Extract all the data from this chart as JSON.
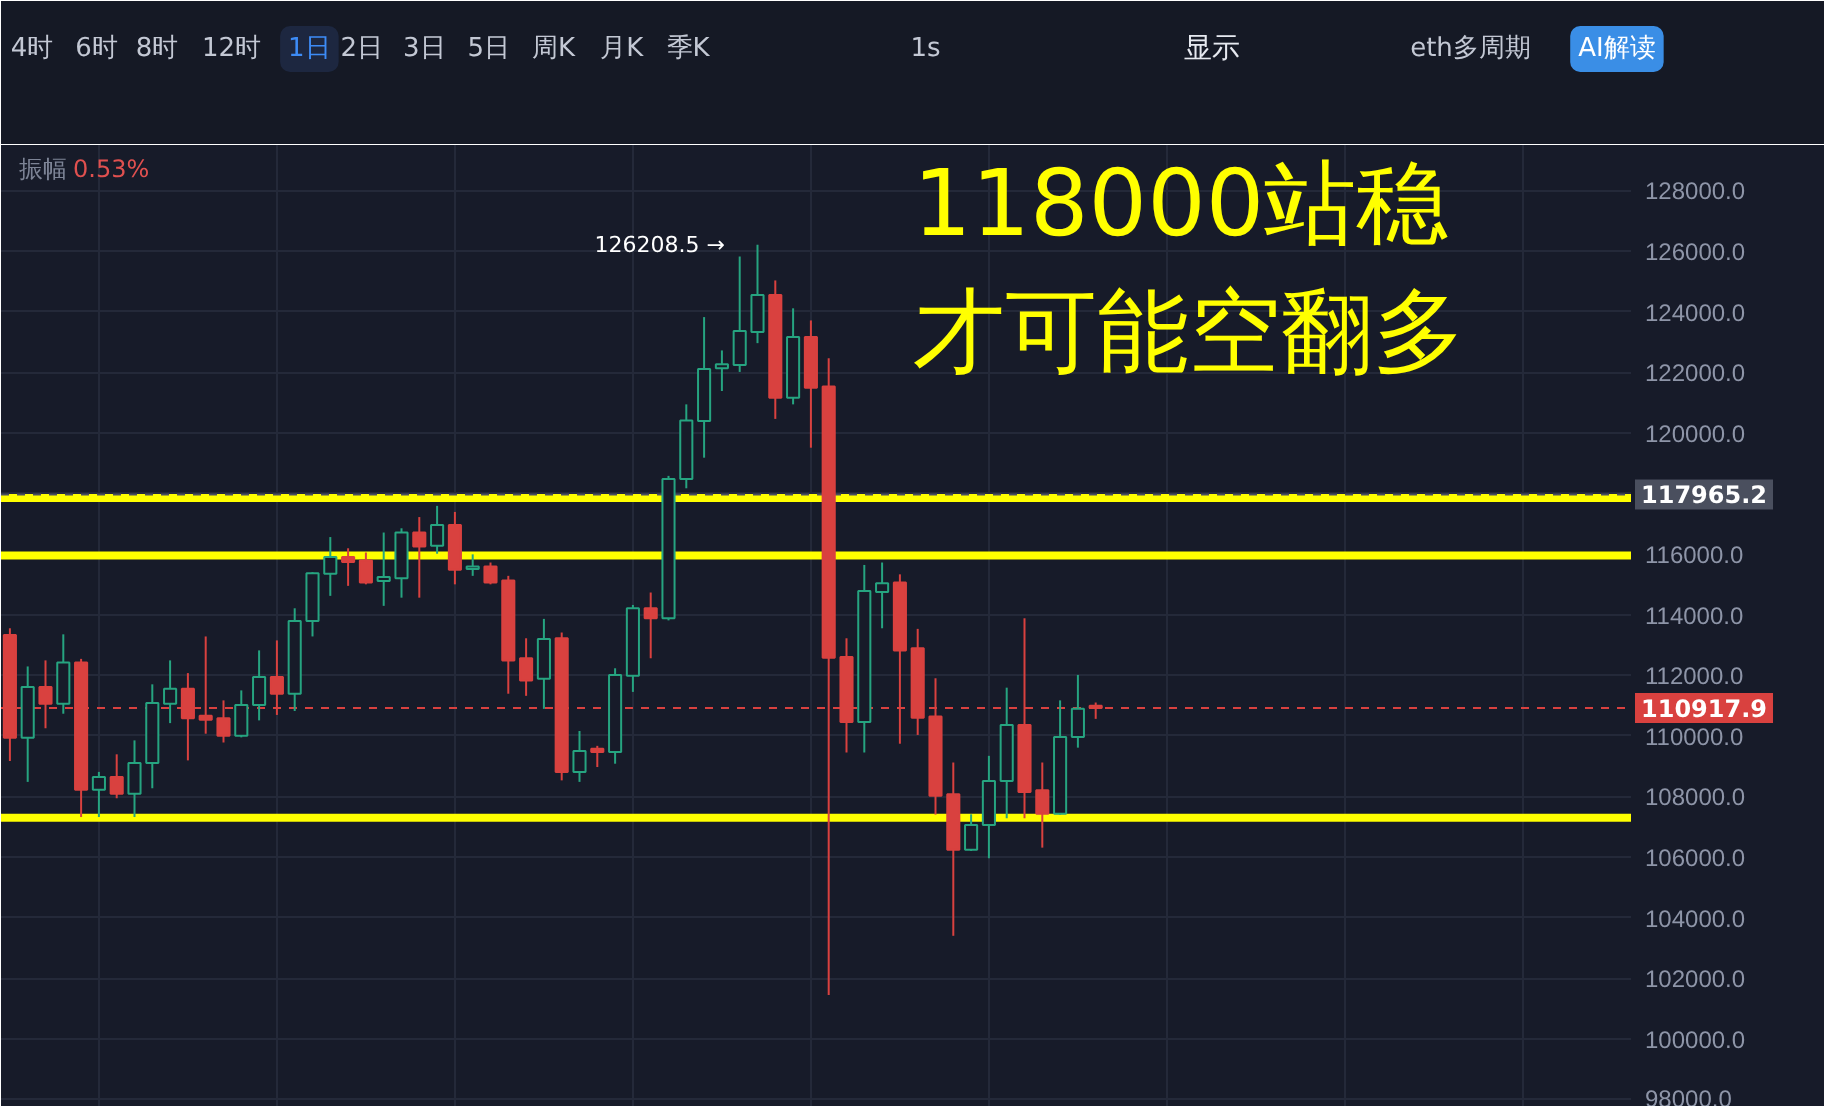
{
  "chart_data": {
    "type": "candlestick",
    "categories": [
      null,
      null,
      null,
      null,
      null,
      null,
      null,
      null,
      null,
      null,
      null,
      null,
      null,
      null,
      null,
      null,
      null,
      null,
      null,
      null,
      null,
      null,
      null,
      null,
      null,
      null,
      null,
      null,
      null,
      null,
      null,
      null,
      null,
      null,
      null,
      null,
      null,
      null,
      null,
      null,
      null,
      null,
      null,
      null,
      null,
      null,
      null,
      null,
      null,
      null,
      null,
      null,
      null,
      null,
      null,
      null,
      null,
      null,
      null,
      null,
      null,
      null,
      null,
      null,
      null,
      null,
      null,
      null,
      null,
      null,
      null,
      null,
      null,
      null,
      null,
      null,
      null,
      null,
      null,
      null,
      null,
      null,
      null,
      null,
      null,
      null,
      null,
      null,
      null,
      null,
      null,
      null,
      null,
      null,
      null,
      null,
      null,
      null,
      null,
      null
    ],
    "ohlc": [
      [
        113330,
        113550,
        109170,
        109940
      ],
      [
        109940,
        112290,
        108480,
        111610
      ],
      [
        111610,
        112490,
        110250,
        111060
      ],
      [
        111060,
        113350,
        110730,
        112420
      ],
      [
        112420,
        112540,
        107320,
        108220
      ],
      [
        108220,
        108810,
        107320,
        108640
      ],
      [
        108640,
        109390,
        107940,
        108090
      ],
      [
        108090,
        109850,
        107320,
        109100
      ],
      [
        109100,
        111700,
        108270,
        111080
      ],
      [
        111060,
        112490,
        110420,
        111550
      ],
      [
        111550,
        112070,
        109190,
        110580
      ],
      [
        110660,
        113280,
        110070,
        110530
      ],
      [
        110580,
        111170,
        109780,
        110000
      ],
      [
        110000,
        111500,
        109950,
        111020
      ],
      [
        111020,
        112820,
        110510,
        111940
      ],
      [
        111940,
        113150,
        110690,
        111390
      ],
      [
        111390,
        114210,
        110820,
        113790
      ],
      [
        113790,
        115400,
        113280,
        115370
      ],
      [
        115350,
        116560,
        114620,
        115900
      ],
      [
        115900,
        116190,
        114950,
        115740
      ],
      [
        115790,
        116050,
        115000,
        115060
      ],
      [
        115110,
        116710,
        114290,
        115240
      ],
      [
        115200,
        116850,
        114560,
        116710
      ],
      [
        116710,
        117220,
        114560,
        116250
      ],
      [
        116270,
        117590,
        116010,
        116960
      ],
      [
        116960,
        117390,
        115000,
        115480
      ],
      [
        115510,
        115990,
        115280,
        115590
      ],
      [
        115590,
        115720,
        115000,
        115060
      ],
      [
        115130,
        115280,
        111390,
        112490
      ],
      [
        112560,
        113220,
        111320,
        111830
      ],
      [
        111880,
        113860,
        110890,
        113200
      ],
      [
        113220,
        113410,
        108530,
        108810
      ],
      [
        108810,
        110160,
        108480,
        109500
      ],
      [
        109570,
        109670,
        108970,
        109470
      ],
      [
        109470,
        112230,
        109080,
        112010
      ],
      [
        111980,
        114320,
        111450,
        114210
      ],
      [
        114210,
        114730,
        112560,
        113880
      ],
      [
        113880,
        118580,
        113810,
        118480
      ],
      [
        118480,
        120940,
        118170,
        120410
      ],
      [
        120390,
        123820,
        119180,
        122110
      ],
      [
        122130,
        122720,
        121380,
        122260
      ],
      [
        122240,
        125820,
        122010,
        123360
      ],
      [
        123330,
        126208.5,
        122960,
        124550
      ],
      [
        124550,
        125030,
        120460,
        121160
      ],
      [
        121160,
        124110,
        120940,
        123160
      ],
      [
        123160,
        123710,
        119510,
        121490
      ],
      [
        121530,
        122460,
        101450,
        112580
      ],
      [
        112600,
        113220,
        109450,
        110460
      ],
      [
        110460,
        115640,
        109450,
        114780
      ],
      [
        114750,
        115720,
        113550,
        115040
      ],
      [
        115060,
        115330,
        109740,
        112820
      ],
      [
        112890,
        113530,
        110030,
        110600
      ],
      [
        110640,
        111900,
        107400,
        108020
      ],
      [
        108070,
        109120,
        103400,
        106240
      ],
      [
        106240,
        107410,
        106200,
        107060
      ],
      [
        107060,
        109340,
        105960,
        108510
      ],
      [
        108510,
        111590,
        107280,
        110360
      ],
      [
        110360,
        113880,
        107280,
        108150
      ],
      [
        108200,
        109120,
        106310,
        107430
      ],
      [
        107430,
        111170,
        107400,
        109960
      ],
      [
        109960,
        112010,
        109610,
        110890
      ],
      [
        110990,
        111100,
        110560,
        110917.9
      ],
      null,
      null,
      null,
      null,
      null,
      null,
      null,
      null,
      null,
      null,
      null,
      null,
      null,
      null,
      null,
      null,
      null,
      null,
      null,
      null,
      null,
      null,
      null,
      null,
      null,
      null,
      null,
      null,
      null,
      null,
      null,
      null,
      null,
      null,
      null,
      null,
      null,
      null
    ],
    "colors": [
      "#d9413f",
      "#26a480",
      "#d9413f",
      "#26a480",
      "#d9413f",
      "#26a480",
      "#d9413f",
      "#26a480",
      "#26a480",
      "#26a480",
      "#d9413f",
      "#d9413f",
      "#d9413f",
      "#26a480",
      "#26a480",
      "#d9413f",
      "#26a480",
      "#26a480",
      "#26a480",
      "#d9413f",
      "#d9413f",
      "#26a480",
      "#26a480",
      "#d9413f",
      "#26a480",
      "#d9413f",
      "#26a480",
      "#d9413f",
      "#d9413f",
      "#d9413f",
      "#26a480",
      "#d9413f",
      "#26a480",
      "#d9413f",
      "#26a480",
      "#26a480",
      "#d9413f",
      "#26a480",
      "#26a480",
      "#26a480",
      "#26a480",
      "#26a480",
      "#26a480",
      "#d9413f",
      "#26a480",
      "#d9413f",
      "#d9413f",
      "#d9413f",
      "#26a480",
      "#26a480",
      "#d9413f",
      "#d9413f",
      "#d9413f",
      "#d9413f",
      "#26a480",
      "#26a480",
      "#26a480",
      "#d9413f",
      "#d9413f",
      "#26a480",
      "#26a480",
      "#d9413f",
      null,
      null,
      null,
      null,
      null,
      null,
      null,
      null,
      null,
      null,
      null,
      null,
      null,
      null,
      null,
      null,
      null,
      null,
      null,
      null,
      null,
      null,
      null,
      null,
      null,
      null,
      null,
      null,
      null,
      null,
      null,
      null,
      null,
      null,
      null,
      null,
      null,
      null
    ],
    "ylim": [
      97750,
      129500
    ],
    "yticks": [
      {
        "value": 98000,
        "label": "98000.0"
      },
      {
        "value": 100000,
        "label": "100000.0"
      },
      {
        "value": 102000,
        "label": "102000.0"
      },
      {
        "value": 104000,
        "label": "104000.0"
      },
      {
        "value": 106000,
        "label": "106000.0"
      },
      {
        "value": 108000,
        "label": "108000.0"
      },
      {
        "value": 110000,
        "label": "110000.0"
      },
      {
        "value": 112000,
        "label": "112000.0"
      },
      {
        "value": 114000,
        "label": "114000.0"
      },
      {
        "value": 116000,
        "label": "116000.0"
      },
      {
        "value": 118000,
        "label": null
      },
      {
        "value": 120000,
        "label": "120000.0"
      },
      {
        "value": 122000,
        "label": "122000.0"
      },
      {
        "value": 124000,
        "label": "124000.0"
      },
      {
        "value": 126000,
        "label": "126000.0"
      },
      {
        "value": 128000,
        "label": "128000.0"
      }
    ],
    "grid": true,
    "ref_lines": [
      {
        "axis": "y",
        "value": 117850,
        "color": "#ffff00"
      },
      {
        "axis": "y",
        "value": 115950,
        "color": "#ffff00"
      },
      {
        "axis": "y",
        "value": 107300,
        "color": "#ffff00"
      },
      {
        "axis": "y",
        "value": 117965.2,
        "label": "117965.2",
        "color": "#4a4f5e",
        "line_style": "dashed"
      },
      {
        "axis": "y",
        "value": 110917.9,
        "label": "110917.9",
        "color": "#d9413f",
        "line_style": "dashed"
      }
    ],
    "annotations": [
      "118000站稳",
      "才可能空翻多",
      "振幅",
      "0.53%",
      "126208.5 →",
      "4时",
      "6时",
      "8时",
      "12时",
      "1日",
      "2日",
      "3日",
      "5日",
      "周K",
      "月K",
      "季K",
      "1s",
      "显示",
      "eth多周期",
      "AI解读"
    ]
  }
}
